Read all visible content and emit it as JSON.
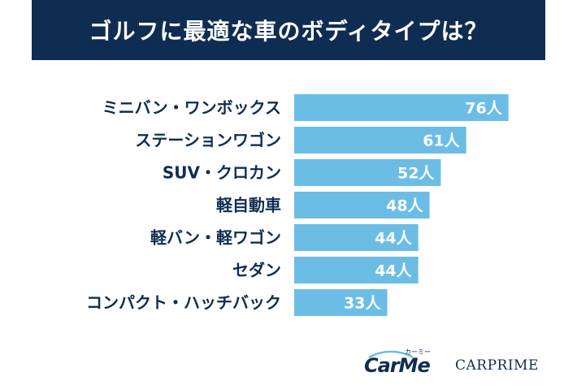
{
  "header": {
    "title": "ゴルフに最適な車のボディタイプは？"
  },
  "chart_data": {
    "type": "bar",
    "orientation": "horizontal",
    "title": "ゴルフに最適な車のボディタイプは？",
    "categories": [
      "ミニバン・ワンボックス",
      "ステーションワゴン",
      "SUV・クロカン",
      "軽自動車",
      "軽バン・軽ワゴン",
      "セダン",
      "コンパクト・ハッチバック"
    ],
    "values": [
      76,
      61,
      52,
      48,
      44,
      44,
      33
    ],
    "value_labels": [
      "76人",
      "61人",
      "52人",
      "48人",
      "44人",
      "44人",
      "33人"
    ],
    "unit": "人",
    "xlim": [
      0,
      80
    ],
    "grid": false,
    "bar_color": "#6cbde6",
    "label_color": "#0f2d52",
    "value_color": "#ffffff"
  },
  "logos": {
    "carme": "CarMe",
    "carme_kana": "カーミー",
    "carprime": "CARPRIME"
  },
  "colors": {
    "header_bg": "#0f2d52",
    "header_text": "#ffffff"
  }
}
